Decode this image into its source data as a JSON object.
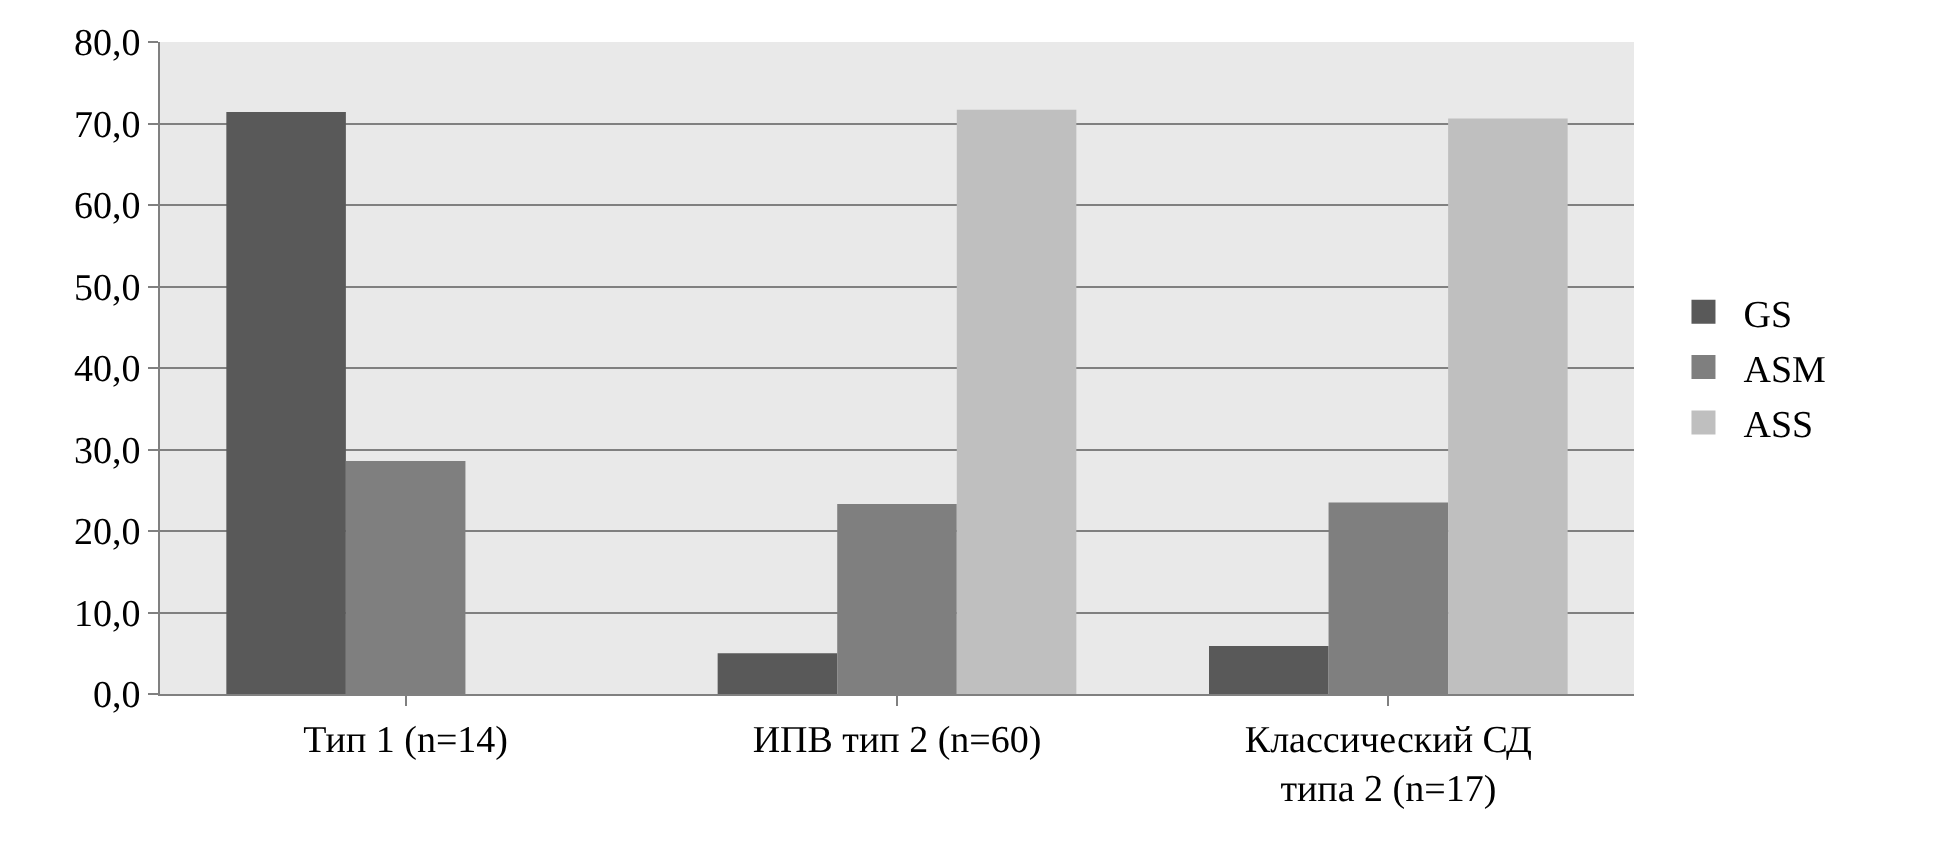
{
  "chart_data": {
    "type": "bar",
    "categories": [
      "Тип 1 (n=14)",
      "ИПВ тип 2 (n=60)",
      "Классический СД\nтипа 2 (n=17)"
    ],
    "series": [
      {
        "name": "GS",
        "color": "#595959",
        "values": [
          71.4,
          5.0,
          5.9
        ]
      },
      {
        "name": "ASM",
        "color": "#7f7f7f",
        "values": [
          28.6,
          23.3,
          23.5
        ]
      },
      {
        "name": "ASS",
        "color": "#bfbfbf",
        "values": [
          0.0,
          71.7,
          70.6
        ]
      }
    ],
    "ylim": [
      0,
      80
    ],
    "yticks": [
      {
        "value": 0,
        "label": "0,0"
      },
      {
        "value": 10,
        "label": "10,0"
      },
      {
        "value": 20,
        "label": "20,0"
      },
      {
        "value": 30,
        "label": "30,0"
      },
      {
        "value": 40,
        "label": "40,0"
      },
      {
        "value": 50,
        "label": "50,0"
      },
      {
        "value": 60,
        "label": "60,0"
      },
      {
        "value": 70,
        "label": "70,0"
      },
      {
        "value": 80,
        "label": "80,0"
      }
    ],
    "grid": "y",
    "legend": "right"
  }
}
